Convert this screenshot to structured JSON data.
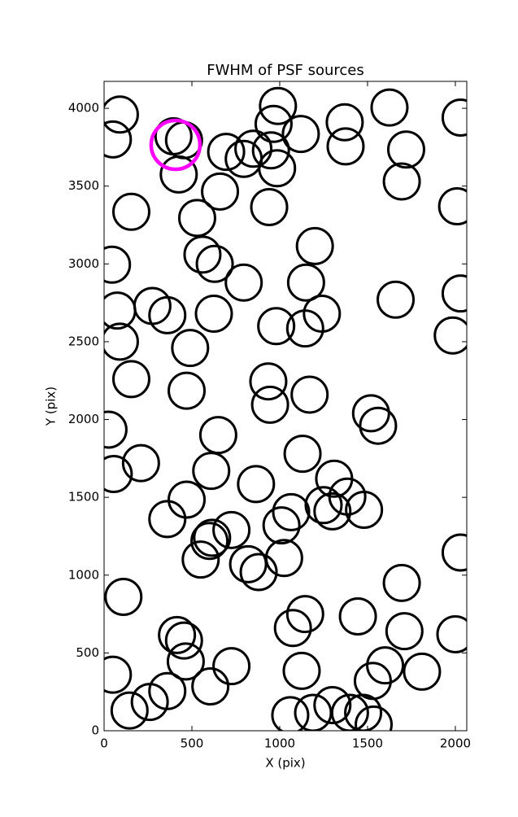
{
  "chart_data": {
    "type": "scatter",
    "title": "FWHM of PSF sources",
    "x_label": "X (pix)",
    "y_label": "Y (pix)",
    "xlim": [
      0,
      2065
    ],
    "ylim": [
      0,
      4173
    ],
    "xticks": [
      0,
      500,
      1000,
      1500,
      2000
    ],
    "yticks": [
      0,
      500,
      1000,
      1500,
      2000,
      2500,
      3000,
      3500,
      4000
    ],
    "grid": false,
    "series": [
      {
        "color": "#000000",
        "x": [
          90,
          50,
          395,
          455,
          425,
          695,
          795,
          850,
          950,
          990,
          965,
          985,
          1120,
          1370,
          1375,
          1625,
          1720,
          1695,
          2030,
          2010,
          155,
          530,
          660,
          940,
          1200,
          45,
          560,
          630,
          795,
          1150,
          75,
          275,
          360,
          625,
          1240,
          1660,
          2030,
          1985,
          90,
          490,
          980,
          1145,
          155,
          470,
          935,
          945,
          1170,
          1520,
          1560,
          25,
          650,
          210,
          55,
          610,
          865,
          1130,
          1310,
          1385,
          1250,
          1300,
          1480,
          470,
          1065,
          1010,
          360,
          725,
          615,
          600,
          550,
          820,
          880,
          1025,
          2030,
          110,
          1695,
          415,
          455,
          465,
          725,
          1075,
          1145,
          1445,
          1710,
          2000,
          50,
          360,
          605,
          1125,
          1600,
          1530,
          1810,
          145,
          260,
          1060,
          1190,
          1300,
          1400,
          1475,
          1535
        ],
        "y": [
          3960,
          3800,
          3820,
          3795,
          3575,
          3720,
          3675,
          3740,
          3730,
          4015,
          3900,
          3615,
          3835,
          3910,
          3755,
          4005,
          3735,
          3530,
          3940,
          3370,
          3335,
          3295,
          3465,
          3365,
          3115,
          2995,
          3060,
          3000,
          2880,
          2880,
          2700,
          2730,
          2670,
          2680,
          2680,
          2770,
          2810,
          2540,
          2500,
          2460,
          2600,
          2585,
          2260,
          2185,
          2245,
          2095,
          2160,
          2040,
          1960,
          1935,
          1900,
          1720,
          1650,
          1670,
          1585,
          1780,
          1620,
          1505,
          1450,
          1410,
          1420,
          1485,
          1405,
          1320,
          1360,
          1290,
          1240,
          1220,
          1100,
          1070,
          1020,
          1110,
          1145,
          860,
          950,
          615,
          580,
          445,
          415,
          660,
          750,
          735,
          640,
          620,
          360,
          255,
          285,
          385,
          420,
          320,
          380,
          130,
          185,
          100,
          115,
          165,
          115,
          115,
          40
        ]
      },
      {
        "color": "#ff00ff",
        "x": [
          407
        ],
        "y": [
          3765
        ]
      }
    ]
  }
}
